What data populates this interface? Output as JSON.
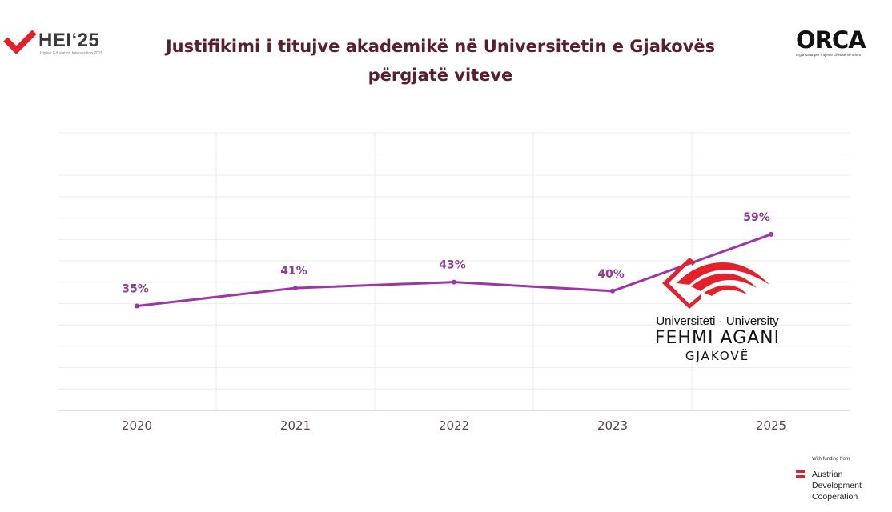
{
  "header": {
    "title_line1": "Justifikimi i titujve akademikë në Universitetin e Gjakovës",
    "title_line2": "përgjatë viteve",
    "hei_logo_text": "HEI‘25",
    "hei_logo_sub": "Higher Education Intervention 2025",
    "orca_logo_text": "ORCA",
    "orca_logo_sub": "organizata për rritjen e cilësisë në arsim"
  },
  "colors": {
    "line": "#9b35a8",
    "label": "#8e3d95",
    "title": "#5a1f2a",
    "grid": "#eeeeee",
    "hei_red": "#e4202b",
    "ufa_red": "#e4202b"
  },
  "university_logo": {
    "line1": "Universiteti · University",
    "line2": "FEHMI AGANI",
    "line3": "GJAKOVË"
  },
  "funding": {
    "label": "With funding from",
    "org_line1": "Austrian",
    "org_line2": "Development",
    "org_line3": "Cooperation"
  },
  "chart_data": {
    "type": "line",
    "title": "Justifikimi i titujve akademikë në Universitetin e Gjakovës përgjatë viteve",
    "categories": [
      "2020",
      "2021",
      "2022",
      "2023",
      "2025"
    ],
    "series": [
      {
        "values": [
          35,
          41,
          43,
          40,
          59
        ]
      }
    ],
    "data_labels": [
      "35%",
      "41%",
      "43%",
      "40%",
      "59%"
    ],
    "ylim": [
      0,
      100
    ],
    "y_axis_visible": false,
    "grid": true,
    "xlabel": "",
    "ylabel": ""
  }
}
